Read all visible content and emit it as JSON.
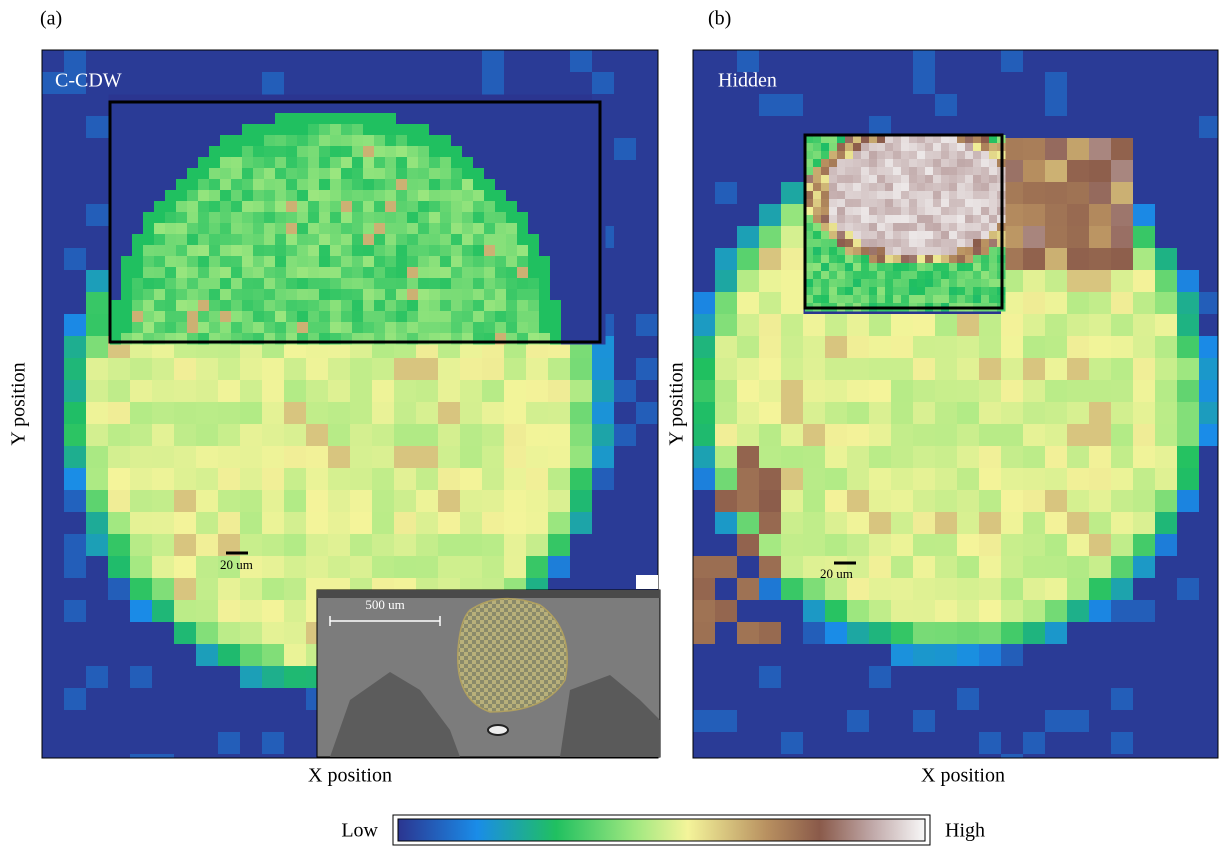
{
  "panels": [
    {
      "label": "(a)",
      "title": "C-CDW",
      "y_axis": "Y position",
      "x_axis": "X position",
      "scale_bar": "20 um",
      "inset_scale_bar": "500 um"
    },
    {
      "label": "(b)",
      "title": "Hidden",
      "y_axis": "Y position",
      "x_axis": "X position",
      "scale_bar": "20 um"
    }
  ],
  "colorbar": {
    "low": "Low",
    "high": "High"
  }
}
